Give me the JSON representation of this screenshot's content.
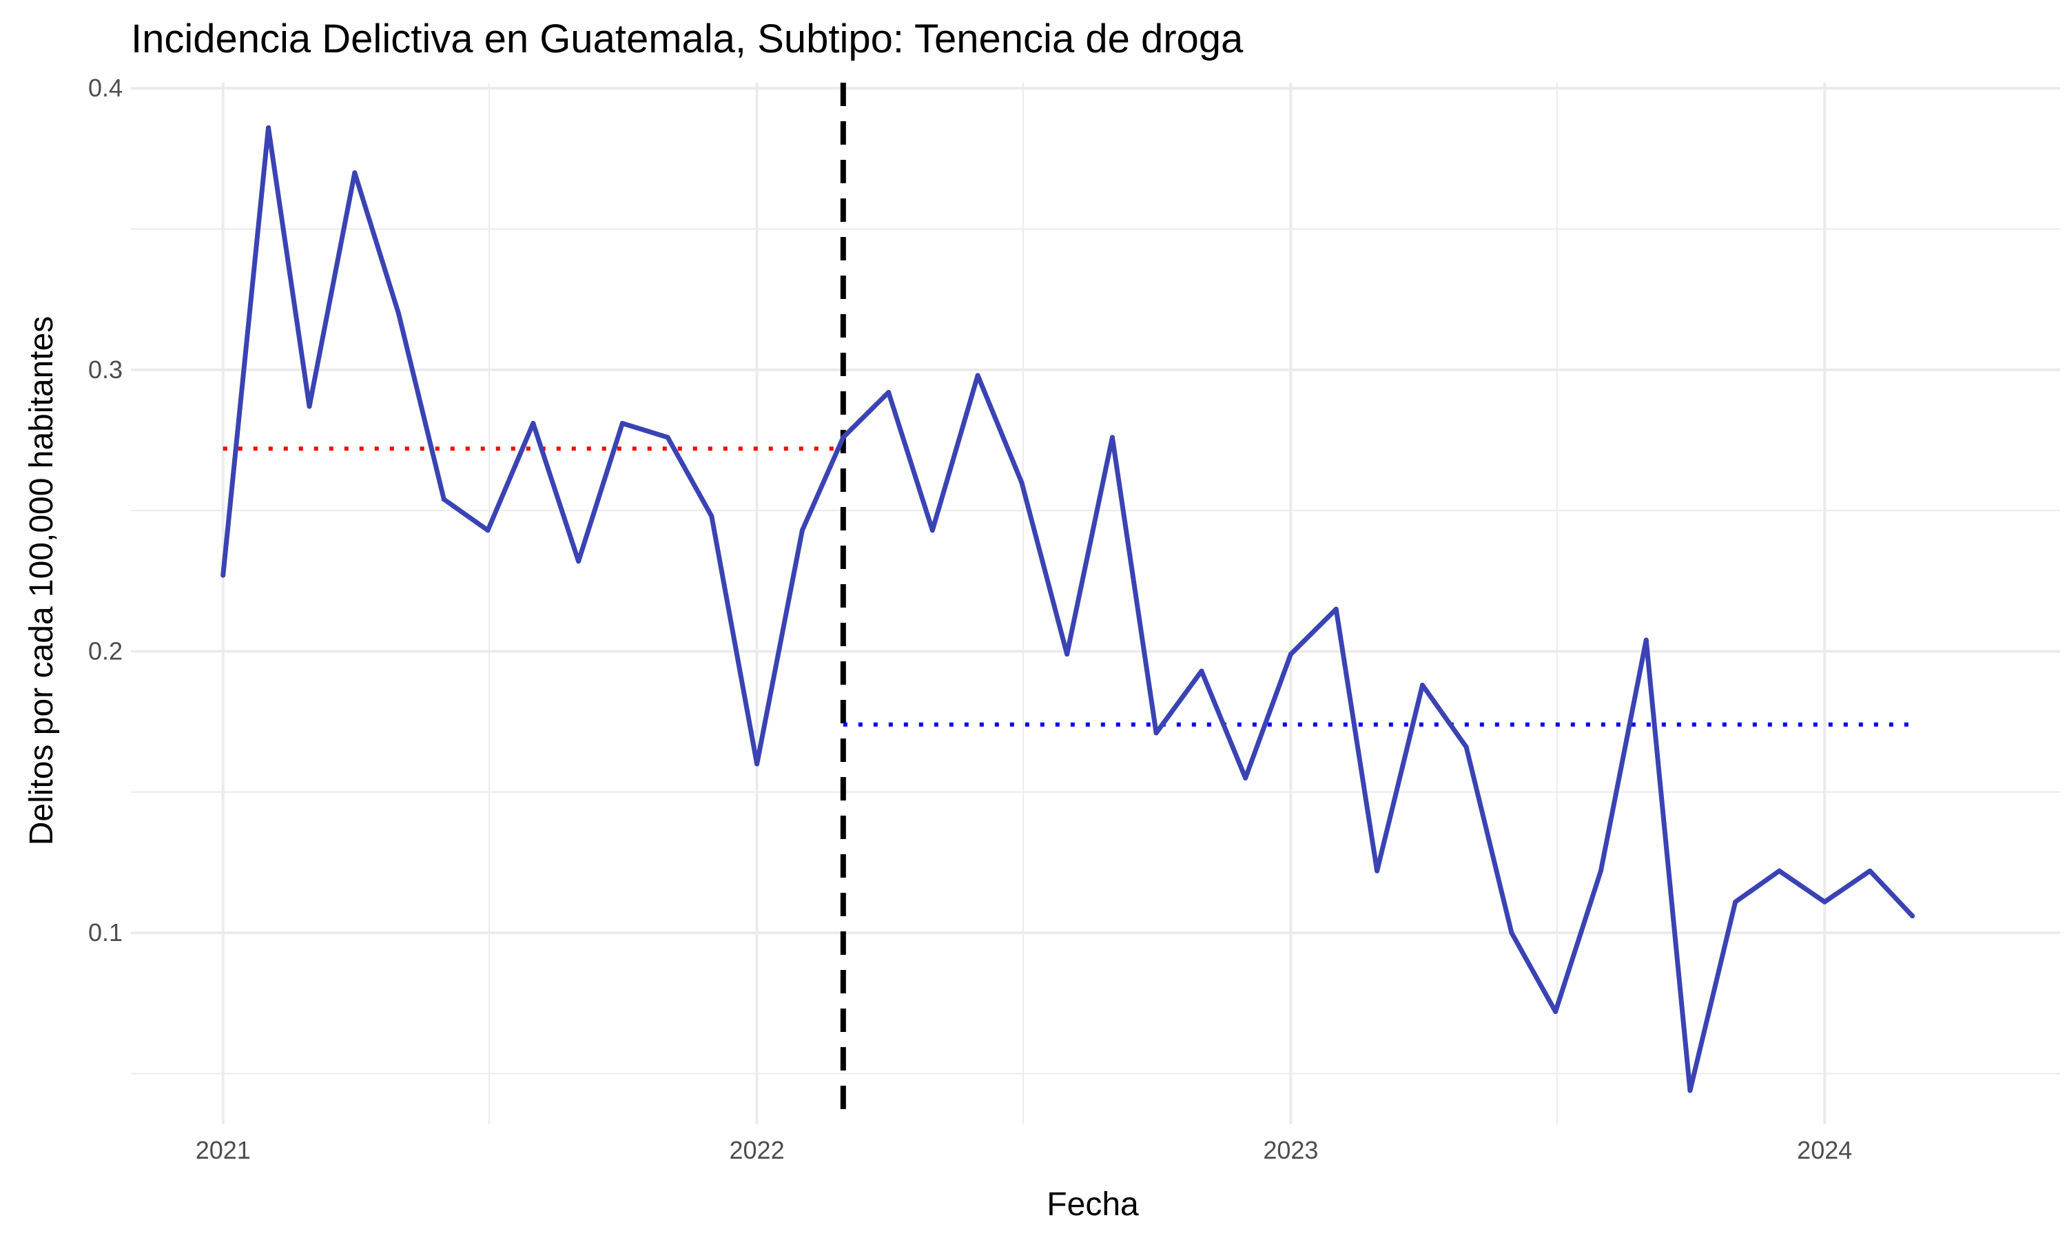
{
  "chart_data": {
    "type": "line",
    "title": "Incidencia Delictiva en Guatemala, Subtipo: Tenencia de droga",
    "xlabel": "Fecha",
    "ylabel": "Delitos por cada 100,000 habitantes",
    "x_ticks": [
      "2021",
      "2022",
      "2023",
      "2024"
    ],
    "y_ticks": [
      "0.1",
      "0.2",
      "0.3",
      "0.4"
    ],
    "xlim": [
      "2020-10-30",
      "2024-06-10"
    ],
    "ylim": [
      0.032,
      0.402
    ],
    "grid": true,
    "legend": "none",
    "series": [
      {
        "color": "#3a43b3",
        "x": [
          "2021-01-01",
          "2021-02-01",
          "2021-03-01",
          "2021-04-01",
          "2021-05-01",
          "2021-06-01",
          "2021-07-01",
          "2021-08-01",
          "2021-09-01",
          "2021-10-01",
          "2021-11-01",
          "2021-12-01",
          "2022-01-01",
          "2022-02-01",
          "2022-03-01",
          "2022-04-01",
          "2022-05-01",
          "2022-06-01",
          "2022-07-01",
          "2022-08-01",
          "2022-09-01",
          "2022-10-01",
          "2022-11-01",
          "2022-12-01",
          "2023-01-01",
          "2023-02-01",
          "2023-03-01",
          "2023-04-01",
          "2023-05-01",
          "2023-06-01",
          "2023-07-01",
          "2023-08-01",
          "2023-09-01",
          "2023-10-01",
          "2023-11-01",
          "2023-12-01",
          "2024-01-01",
          "2024-02-01",
          "2024-03-01"
        ],
        "values": [
          0.227,
          0.386,
          0.287,
          0.37,
          0.32,
          0.254,
          0.243,
          0.281,
          0.232,
          0.281,
          0.276,
          0.248,
          0.16,
          0.243,
          0.276,
          0.292,
          0.243,
          0.298,
          0.26,
          0.199,
          0.276,
          0.171,
          0.193,
          0.155,
          0.199,
          0.215,
          0.122,
          0.188,
          0.166,
          0.1,
          0.072,
          0.122,
          0.204,
          0.044,
          0.111,
          0.122,
          0.111,
          0.122,
          0.106
        ]
      }
    ],
    "reference_lines": [
      {
        "type": "vertical",
        "x": "2022-03-01",
        "style": "dashed",
        "color": "#000000"
      },
      {
        "type": "horizontal",
        "y": 0.272,
        "x_from": "2021-01-01",
        "x_to": "2022-03-01",
        "style": "dotted",
        "color": "#ff0000"
      },
      {
        "type": "horizontal",
        "y": 0.174,
        "x_from": "2022-03-01",
        "x_to": "2024-03-01",
        "style": "dotted",
        "color": "#0000ff"
      }
    ]
  }
}
